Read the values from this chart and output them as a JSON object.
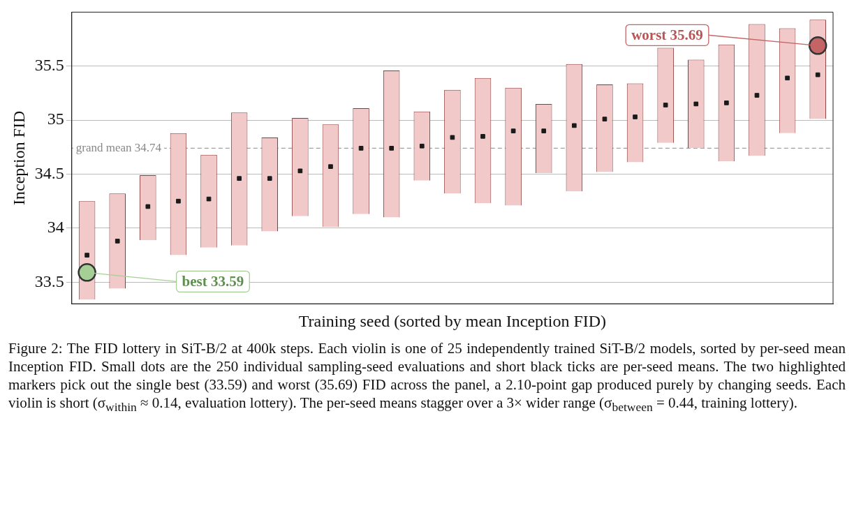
{
  "chart_data": {
    "type": "bar",
    "ylabel": "Inception FID",
    "xlabel": "Training seed (sorted by mean Inception FID)",
    "categories": [
      null,
      null,
      null,
      null,
      null,
      null,
      null,
      null,
      null,
      null,
      null,
      null,
      null,
      null,
      null,
      null,
      null,
      null,
      null,
      null,
      null,
      null,
      null,
      null,
      null
    ],
    "series": [
      {
        "color": "#f2c9c9",
        "base": [
          33.34,
          33.44,
          33.89,
          33.75,
          33.82,
          33.84,
          33.97,
          34.11,
          34.01,
          34.13,
          34.1,
          34.44,
          34.32,
          34.23,
          34.21,
          34.51,
          34.34,
          34.52,
          34.61,
          34.79,
          34.74,
          34.62,
          34.67,
          34.88,
          35.01
        ],
        "values": [
          0.91,
          0.88,
          0.6,
          1.13,
          0.86,
          1.23,
          0.87,
          0.91,
          0.95,
          0.98,
          1.36,
          0.64,
          0.96,
          1.16,
          1.09,
          0.64,
          1.18,
          0.81,
          0.73,
          0.88,
          0.82,
          1.08,
          1.22,
          0.97,
          0.92
        ]
      },
      {
        "type": "scatter",
        "color": "#1a1a1a",
        "marker": "square",
        "values": [
          33.75,
          33.88,
          34.2,
          34.25,
          34.27,
          34.46,
          34.46,
          34.53,
          34.57,
          34.74,
          34.74,
          34.76,
          34.84,
          34.85,
          34.9,
          34.9,
          34.95,
          35.01,
          35.03,
          35.14,
          35.15,
          35.16,
          35.23,
          35.39,
          35.42
        ]
      },
      {
        "type": "scatter",
        "color": "#a6cf96",
        "marker": "circle",
        "values": [
          33.59,
          null,
          null,
          null,
          null,
          null,
          null,
          null,
          null,
          null,
          null,
          null,
          null,
          null,
          null,
          null,
          null,
          null,
          null,
          null,
          null,
          null,
          null,
          null,
          null
        ]
      },
      {
        "type": "scatter",
        "color": "#c46464",
        "marker": "circle",
        "values": [
          null,
          null,
          null,
          null,
          null,
          null,
          null,
          null,
          null,
          null,
          null,
          null,
          null,
          null,
          null,
          null,
          null,
          null,
          null,
          null,
          null,
          null,
          null,
          null,
          35.69
        ]
      }
    ],
    "ylim": [
      33.3,
      36.0
    ],
    "yticks": [
      33.5,
      34,
      34.5,
      35,
      35.5
    ],
    "grid": "y",
    "legend": false,
    "ref_lines": [
      {
        "axis": "y",
        "value": 34.74,
        "label": "grand mean 34.74",
        "line_style": "dashed",
        "color": "#a0a0a0"
      }
    ],
    "tick_labels": "y",
    "annotations": [
      "best 33.59",
      "worst 35.69",
      "Figure 2: The FID lottery in SiT-B/2 at 400k steps. Each violin is one of 25 independently trained SiT-B/2 models, sorted by per-seed mean Inception FID. Small dots are the 250 individual sampling-seed evaluations and short black ticks are per-seed means. The two highlighted markers pick out the single best (33.59) and worst (35.69) FID across the panel, a 2.10-point gap produced purely by changing seeds. Each violin is short (σ$_{within}$ ≈ 0.14, evaluation lottery). The per-seed means stagger over a 3× wider range (σ$_{between}$ = 0.44, training lottery)."
    ]
  }
}
